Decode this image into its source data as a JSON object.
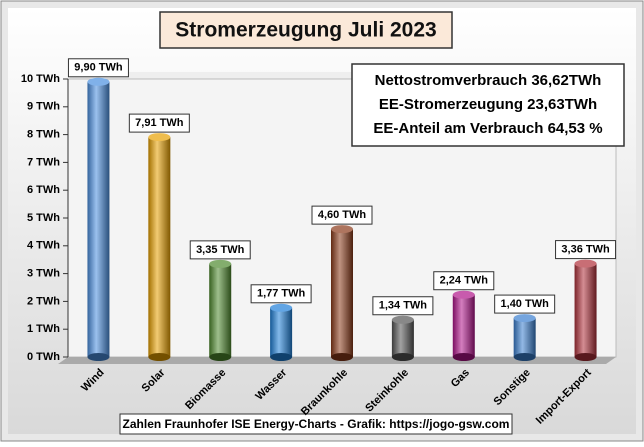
{
  "chart_data": {
    "type": "bar",
    "title": "Stromerzeugung Juli 2023",
    "categories": [
      "Wind",
      "Solar",
      "Biomasse",
      "Wasser",
      "Braunkohle",
      "Steinkohle",
      "Gas",
      "Sonstige",
      "Import-Export"
    ],
    "values": [
      9.9,
      7.91,
      3.35,
      1.77,
      4.6,
      1.34,
      2.24,
      1.4,
      3.36
    ],
    "value_labels": [
      "9,90 TWh",
      "7,91 TWh",
      "3,35 TWh",
      "1,77 TWh",
      "4,60 TWh",
      "1,34 TWh",
      "2,24 TWh",
      "1,40 TWh",
      "3,36 TWh"
    ],
    "colors": [
      "#4a8fe0",
      "#e8a000",
      "#4e8a2e",
      "#1e7fd8",
      "#8b3a1a",
      "#555555",
      "#b0148a",
      "#3a7fd0",
      "#b0303a"
    ],
    "ylim": [
      0,
      10
    ],
    "yticks": [
      {
        "value": 0,
        "label": "0 TWh"
      },
      {
        "value": 1,
        "label": "1 TWh"
      },
      {
        "value": 2,
        "label": "2 TWh"
      },
      {
        "value": 3,
        "label": "3 TWh"
      },
      {
        "value": 4,
        "label": "4 TWh"
      },
      {
        "value": 5,
        "label": "5 TWh"
      },
      {
        "value": 6,
        "label": "6 TWh"
      },
      {
        "value": 7,
        "label": "7 TWh"
      },
      {
        "value": 8,
        "label": "8 TWh"
      },
      {
        "value": 9,
        "label": "9 TWh"
      },
      {
        "value": 10,
        "label": "10 TWh"
      }
    ],
    "grid": false,
    "info": [
      "Nettostromverbrauch 36,62TWh",
      "EE-Stromerzeugung 23,63TWh",
      "EE-Anteil am Verbrauch 64,53 %"
    ],
    "footer": "Zahlen Fraunhofer ISE  Energy-Charts - Grafik: https://jogo-gsw.com"
  }
}
